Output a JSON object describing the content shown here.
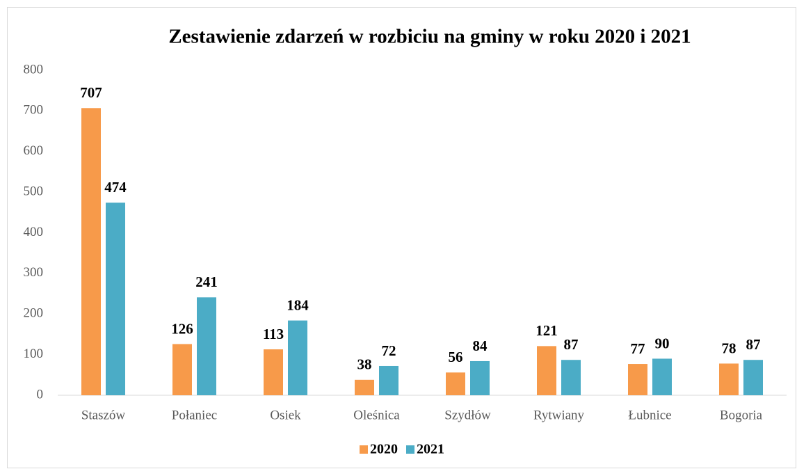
{
  "chart_data": {
    "type": "bar",
    "title": "Zestawienie zdarzeń w rozbiciu na gminy w roku 2020 i 2021",
    "categories": [
      "Staszów",
      "Połaniec",
      "Osiek",
      "Oleśnica",
      "Szydłów",
      "Rytwiany",
      "Łubnice",
      "Bogoria"
    ],
    "series": [
      {
        "name": "2020",
        "color": "#f79a4a",
        "values": [
          707,
          126,
          113,
          38,
          56,
          121,
          77,
          78
        ]
      },
      {
        "name": "2021",
        "color": "#4bacc6",
        "values": [
          474,
          241,
          184,
          72,
          84,
          87,
          90,
          87
        ]
      }
    ],
    "ylim": [
      0,
      800
    ],
    "yticks": [
      0,
      100,
      200,
      300,
      400,
      500,
      600,
      700,
      800
    ],
    "grid": false,
    "legend": "bottom"
  }
}
